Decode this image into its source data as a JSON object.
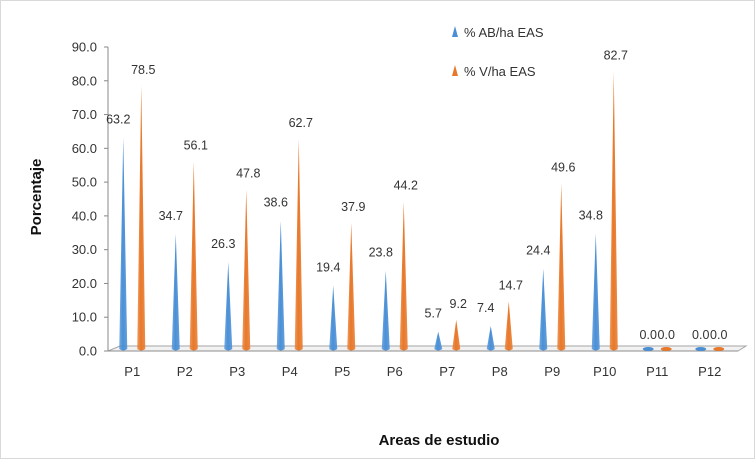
{
  "chart_data": {
    "type": "bar",
    "categories": [
      "P1",
      "P2",
      "P3",
      "P4",
      "P5",
      "P6",
      "P7",
      "P8",
      "P9",
      "P10",
      "P11",
      "P12"
    ],
    "series": [
      {
        "name": "% AB/ha EAS",
        "values": [
          63.2,
          34.7,
          26.3,
          38.6,
          19.4,
          23.8,
          5.7,
          7.4,
          24.4,
          34.8,
          0.0,
          0.0
        ],
        "color": "#4a8fd6"
      },
      {
        "name": "% V/ha EAS",
        "values": [
          78.5,
          56.1,
          47.8,
          62.7,
          37.9,
          44.2,
          9.2,
          14.7,
          49.6,
          82.7,
          0.0,
          0.0
        ],
        "color": "#e8782a"
      }
    ],
    "value_labels": {
      "s0": [
        "63.2",
        "34.7",
        "26.3",
        "38.6",
        "19.4",
        "23.8",
        "5.7",
        "7.4",
        "24.4",
        "34.8",
        "0.0",
        "0.0"
      ],
      "s1": [
        "78.5",
        "56.1",
        "47.8",
        "62.7",
        "37.9",
        "44.2",
        "9.2",
        "14.7",
        "49.6",
        "82.7",
        "0.0",
        "0.0"
      ]
    },
    "ylim": [
      0,
      90
    ],
    "yticks": [
      "0.0",
      "10.0",
      "20.0",
      "30.0",
      "40.0",
      "50.0",
      "60.0",
      "70.0",
      "80.0",
      "90.0"
    ],
    "xlabel": "Areas de estudio",
    "ylabel": "Porcentaje",
    "legend_position": "top-right",
    "grid": false,
    "mark_shape": "cone"
  }
}
